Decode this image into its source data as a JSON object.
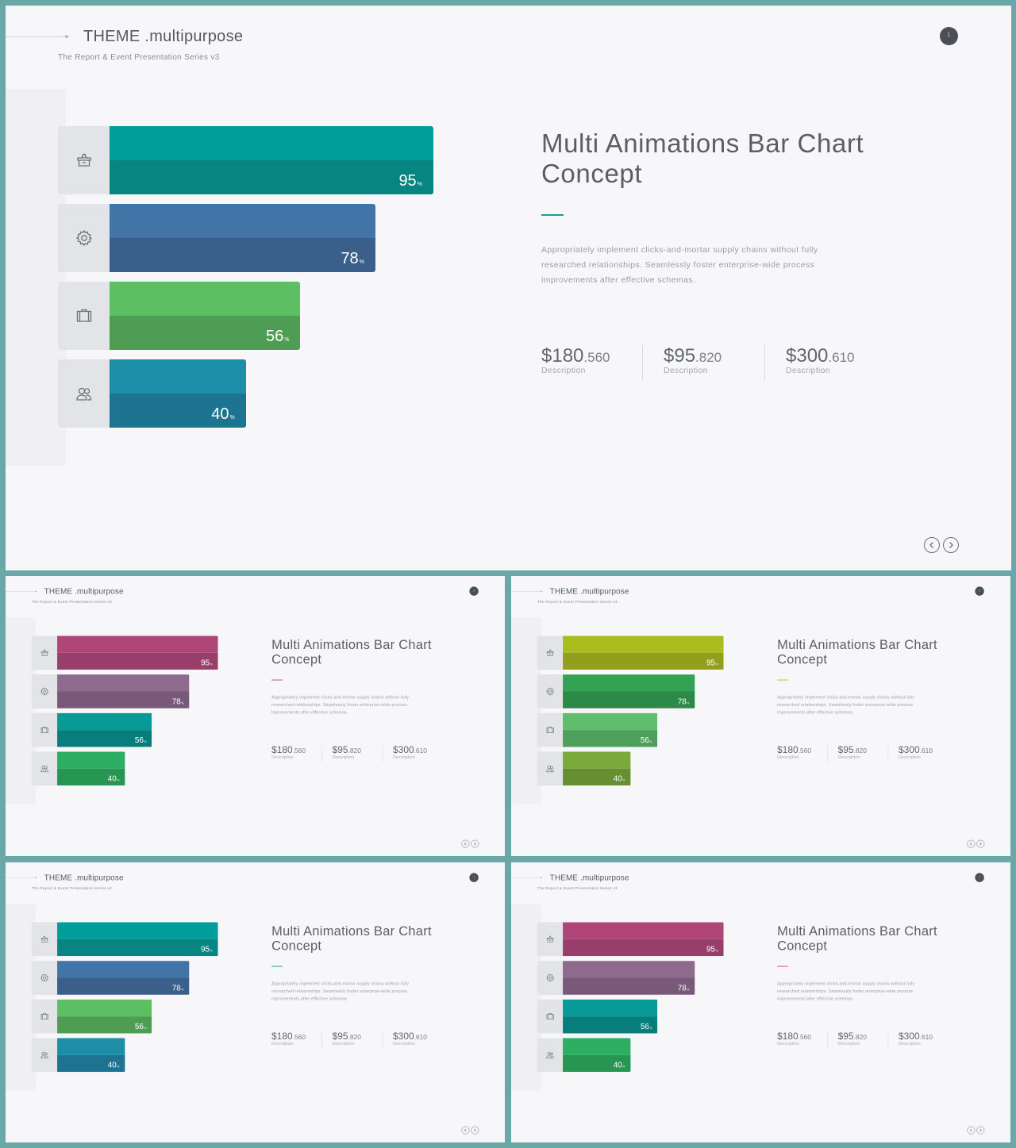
{
  "header": {
    "title": "THEME .multipurpose",
    "subtitle": "The Report & Event Presentation Series v3",
    "page_number": "1"
  },
  "content": {
    "title": "Multi Animations Bar Chart Concept",
    "body": "Appropriately implement clicks-and-mortar supply chains without fully researched relationships. Seamlessly foster enterprise-wide process improvements after effective schemas.",
    "stats": [
      {
        "main": "$180",
        "decimal": ".560",
        "label": "Description"
      },
      {
        "main": "$95",
        "decimal": ".820",
        "label": "Description"
      },
      {
        "main": "$300",
        "decimal": ".610",
        "label": "Description"
      }
    ]
  },
  "icons": [
    "basket-icon",
    "gear-icon",
    "briefcase-icon",
    "users-icon"
  ],
  "chart_data": [
    {
      "type": "bar",
      "orientation": "horizontal",
      "values": [
        95,
        78,
        56,
        40
      ],
      "value_suffix": "%",
      "xlim": [
        0,
        100
      ],
      "colors": [
        [
          "#009e98",
          "#078580"
        ],
        [
          "#4274a8",
          "#3a5f8a"
        ],
        [
          "#5dbf64",
          "#4f9d55"
        ],
        [
          "#1c8ea7",
          "#1c7490"
        ]
      ],
      "accent": "#1a9e9a"
    },
    {
      "type": "bar",
      "orientation": "horizontal",
      "values": [
        95,
        78,
        56,
        40
      ],
      "value_suffix": "%",
      "xlim": [
        0,
        100
      ],
      "colors": [
        [
          "#b0457a",
          "#983e6a"
        ],
        [
          "#8d6a8e",
          "#78597a"
        ],
        [
          "#079a96",
          "#087e7c"
        ],
        [
          "#2eae62",
          "#269652"
        ]
      ],
      "accent": "#c25a7e"
    },
    {
      "type": "bar",
      "orientation": "horizontal",
      "values": [
        95,
        78,
        56,
        40
      ],
      "value_suffix": "%",
      "xlim": [
        0,
        100
      ],
      "colors": [
        [
          "#a9bd1c",
          "#929f1d"
        ],
        [
          "#33a353",
          "#2b8a47"
        ],
        [
          "#5fbd6d",
          "#4f9f5c"
        ],
        [
          "#7aaa3a",
          "#668f32"
        ]
      ],
      "accent": "#b7c93a"
    },
    {
      "type": "bar",
      "orientation": "horizontal",
      "values": [
        95,
        78,
        56,
        40
      ],
      "value_suffix": "%",
      "xlim": [
        0,
        100
      ],
      "colors": [
        [
          "#009e98",
          "#078580"
        ],
        [
          "#4274a8",
          "#3a5f8a"
        ],
        [
          "#5dbf64",
          "#4f9d55"
        ],
        [
          "#1c8ea7",
          "#1c7490"
        ]
      ],
      "accent": "#1a9e9a"
    },
    {
      "type": "bar",
      "orientation": "horizontal",
      "values": [
        95,
        78,
        56,
        40
      ],
      "value_suffix": "%",
      "xlim": [
        0,
        100
      ],
      "colors": [
        [
          "#b0457a",
          "#983e6a"
        ],
        [
          "#8d6a8e",
          "#78597a"
        ],
        [
          "#079a96",
          "#087e7c"
        ],
        [
          "#2eae62",
          "#269652"
        ]
      ],
      "accent": "#c25a7e"
    }
  ]
}
